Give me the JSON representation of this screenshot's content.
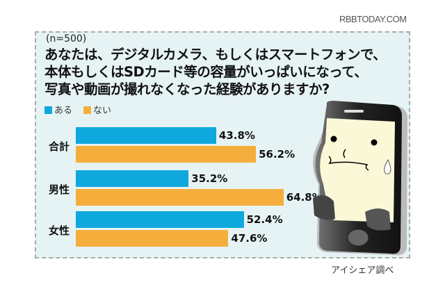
{
  "watermark": "RBBTODAY.COM",
  "chart_data": {
    "type": "bar",
    "orientation": "horizontal",
    "note": "(n=500)",
    "title_lines": [
      "あなたは、デジタルカメラ、もしくはスマートフォンで、",
      "本体もしくはSDカード等の容量がいっぱいになって、",
      "写真や動画が撮れなくなった経験がありますか?"
    ],
    "categories": [
      "合計",
      "男性",
      "女性"
    ],
    "series": [
      {
        "name": "ある",
        "color": "#0fa8dc",
        "values": [
          43.8,
          35.2,
          52.4
        ],
        "labels": [
          "43.8%",
          "35.2%",
          "52.4%"
        ]
      },
      {
        "name": "ない",
        "color": "#f5ae3c",
        "values": [
          56.2,
          64.8,
          47.6
        ],
        "labels": [
          "56.2%",
          "64.8%",
          "47.6%"
        ]
      }
    ],
    "unit": "%",
    "legend": "top-left",
    "grid": false,
    "source": "アイシェア調べ"
  },
  "illustration": "worried-smartphone-character"
}
